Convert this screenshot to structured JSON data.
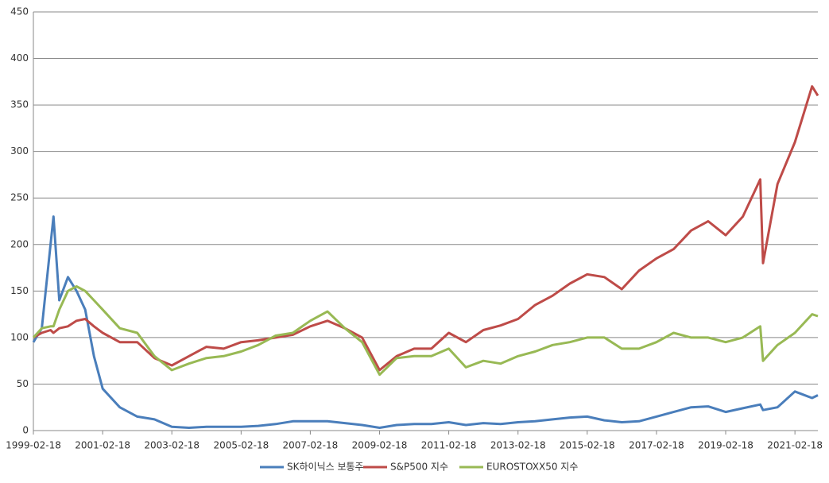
{
  "chart_data": {
    "type": "line",
    "x": [
      "1999-02-18",
      "1999-05-18",
      "1999-08-18",
      "1999-09-18",
      "1999-11-18",
      "2000-02-18",
      "2000-05-18",
      "2000-08-18",
      "2000-11-18",
      "2001-02-18",
      "2001-08-18",
      "2002-02-18",
      "2002-08-18",
      "2003-02-18",
      "2003-08-18",
      "2004-02-18",
      "2004-08-18",
      "2005-02-18",
      "2005-08-18",
      "2006-02-18",
      "2006-08-18",
      "2007-02-18",
      "2007-08-18",
      "2008-02-18",
      "2008-08-18",
      "2009-02-18",
      "2009-08-18",
      "2010-02-18",
      "2010-08-18",
      "2011-02-18",
      "2011-08-18",
      "2012-02-18",
      "2012-08-18",
      "2013-02-18",
      "2013-08-18",
      "2014-02-18",
      "2014-08-18",
      "2015-02-18",
      "2015-08-18",
      "2016-02-18",
      "2016-08-18",
      "2017-02-18",
      "2017-08-18",
      "2018-02-18",
      "2018-08-18",
      "2019-02-18",
      "2019-08-18",
      "2020-02-18",
      "2020-03-18",
      "2020-08-18",
      "2021-02-18",
      "2021-08-18",
      "2021-10-18"
    ],
    "series": [
      {
        "name": "SK하이닉스 보통주",
        "color": "#4a7ebb",
        "values": [
          95,
          110,
          200,
          230,
          140,
          165,
          150,
          130,
          80,
          45,
          25,
          15,
          12,
          4,
          3,
          4,
          4,
          4,
          5,
          7,
          10,
          10,
          10,
          8,
          6,
          3,
          6,
          7,
          7,
          9,
          6,
          8,
          7,
          9,
          10,
          12,
          14,
          15,
          11,
          9,
          10,
          15,
          20,
          25,
          26,
          20,
          24,
          28,
          22,
          25,
          42,
          35,
          38
        ]
      },
      {
        "name": "S&P500 지수",
        "color": "#be4b48",
        "values": [
          100,
          105,
          108,
          105,
          110,
          112,
          118,
          120,
          112,
          105,
          95,
          95,
          78,
          70,
          80,
          90,
          88,
          95,
          97,
          100,
          103,
          112,
          118,
          110,
          100,
          65,
          80,
          88,
          88,
          105,
          95,
          108,
          113,
          120,
          135,
          145,
          158,
          168,
          165,
          152,
          172,
          185,
          195,
          215,
          225,
          210,
          230,
          270,
          180,
          265,
          310,
          370,
          360
        ]
      },
      {
        "name": "EUROSTOXX50 지수",
        "color": "#98b954",
        "values": [
          100,
          110,
          112,
          112,
          130,
          150,
          155,
          150,
          140,
          130,
          110,
          105,
          80,
          65,
          72,
          78,
          80,
          85,
          92,
          102,
          105,
          118,
          128,
          110,
          95,
          60,
          78,
          80,
          80,
          88,
          68,
          75,
          72,
          80,
          85,
          92,
          95,
          100,
          100,
          88,
          88,
          95,
          105,
          100,
          100,
          95,
          100,
          112,
          75,
          92,
          105,
          125,
          123
        ]
      }
    ],
    "xlim": [
      "1999-02-18",
      "2021-10-18"
    ],
    "xticks": [
      "1999-02-18",
      "2001-02-18",
      "2003-02-18",
      "2005-02-18",
      "2007-02-18",
      "2009-02-18",
      "2011-02-18",
      "2013-02-18",
      "2015-02-18",
      "2017-02-18",
      "2019-02-18",
      "2021-02-18"
    ],
    "ylim": [
      0,
      450
    ],
    "yticks": [
      0,
      50,
      100,
      150,
      200,
      250,
      300,
      350,
      400,
      450
    ],
    "grid": true,
    "legend": "bottom"
  }
}
